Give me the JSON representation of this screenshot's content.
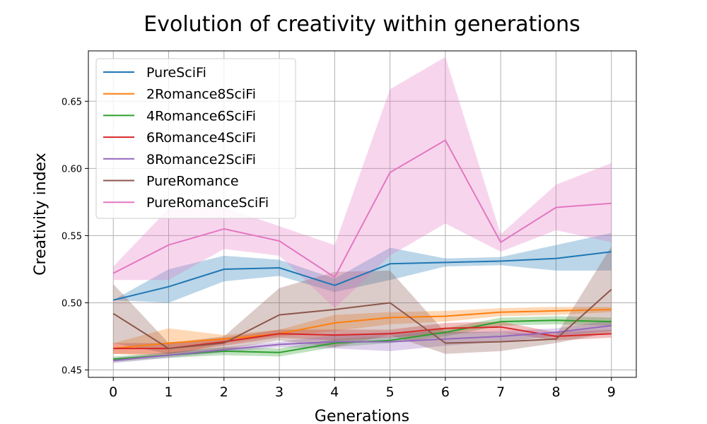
{
  "chart_data": {
    "type": "line",
    "title": "Evolution of creativity within generations",
    "xlabel": "Generations",
    "ylabel": "Creativity index",
    "x": [
      0,
      1,
      2,
      3,
      4,
      5,
      6,
      7,
      8,
      9
    ],
    "xticks": [
      "0",
      "1",
      "2",
      "3",
      "4",
      "5",
      "6",
      "7",
      "8",
      "9"
    ],
    "yticks": [
      "0.45",
      "0.50",
      "0.55",
      "0.60",
      "0.65"
    ],
    "xlim": [
      -0.45,
      9.45
    ],
    "ylim": [
      0.4445,
      0.6875
    ],
    "grid": true,
    "legend": "upper-left",
    "series": [
      {
        "name": "PureSciFi",
        "color": "#1f77b4",
        "values": [
          0.502,
          0.512,
          0.525,
          0.526,
          0.513,
          0.529,
          0.53,
          0.531,
          0.533,
          0.538
        ],
        "lower": [
          0.502,
          0.5,
          0.516,
          0.52,
          0.508,
          0.517,
          0.527,
          0.528,
          0.524,
          0.524
        ],
        "upper": [
          0.502,
          0.525,
          0.535,
          0.532,
          0.518,
          0.541,
          0.533,
          0.534,
          0.543,
          0.552
        ]
      },
      {
        "name": "2Romance8SciFi",
        "color": "#ff7f0e",
        "values": [
          0.466,
          0.47,
          0.473,
          0.477,
          0.485,
          0.489,
          0.49,
          0.493,
          0.494,
          0.495
        ],
        "lower": [
          0.462,
          0.46,
          0.47,
          0.475,
          0.479,
          0.484,
          0.486,
          0.49,
          0.491,
          0.493
        ],
        "upper": [
          0.47,
          0.481,
          0.476,
          0.48,
          0.491,
          0.493,
          0.494,
          0.496,
          0.497,
          0.497
        ]
      },
      {
        "name": "4Romance6SciFi",
        "color": "#2ca02c",
        "values": [
          0.458,
          0.461,
          0.464,
          0.463,
          0.47,
          0.472,
          0.478,
          0.486,
          0.487,
          0.486
        ],
        "lower": [
          0.456,
          0.459,
          0.461,
          0.46,
          0.467,
          0.47,
          0.475,
          0.483,
          0.484,
          0.483
        ],
        "upper": [
          0.46,
          0.463,
          0.467,
          0.466,
          0.473,
          0.475,
          0.481,
          0.489,
          0.49,
          0.489
        ]
      },
      {
        "name": "6Romance4SciFi",
        "color": "#d62728",
        "values": [
          0.466,
          0.466,
          0.471,
          0.477,
          0.476,
          0.477,
          0.481,
          0.482,
          0.475,
          0.477
        ],
        "lower": [
          0.462,
          0.462,
          0.468,
          0.474,
          0.472,
          0.474,
          0.477,
          0.478,
          0.472,
          0.474
        ],
        "upper": [
          0.47,
          0.47,
          0.474,
          0.48,
          0.48,
          0.48,
          0.485,
          0.486,
          0.478,
          0.48
        ]
      },
      {
        "name": "8Romance2SciFi",
        "color": "#9467bd",
        "values": [
          0.457,
          0.461,
          0.465,
          0.469,
          0.471,
          0.471,
          0.473,
          0.475,
          0.478,
          0.483
        ],
        "lower": [
          0.455,
          0.459,
          0.463,
          0.467,
          0.466,
          0.464,
          0.468,
          0.471,
          0.475,
          0.479
        ],
        "upper": [
          0.459,
          0.463,
          0.467,
          0.471,
          0.476,
          0.478,
          0.478,
          0.479,
          0.481,
          0.487
        ]
      },
      {
        "name": "PureRomance",
        "color": "#8c564b",
        "values": [
          0.492,
          0.466,
          0.47,
          0.491,
          0.495,
          0.5,
          0.47,
          0.471,
          0.473,
          0.51
        ],
        "lower": [
          0.47,
          0.462,
          0.465,
          0.472,
          0.467,
          0.476,
          0.462,
          0.464,
          0.47,
          0.478
        ],
        "upper": [
          0.514,
          0.47,
          0.475,
          0.511,
          0.523,
          0.524,
          0.478,
          0.478,
          0.476,
          0.542
        ]
      },
      {
        "name": "PureRomanceSciFi",
        "color": "#e377c2",
        "values": [
          0.522,
          0.543,
          0.555,
          0.546,
          0.519,
          0.597,
          0.621,
          0.545,
          0.571,
          0.574
        ],
        "lower": [
          0.517,
          0.517,
          0.54,
          0.535,
          0.496,
          0.535,
          0.559,
          0.538,
          0.554,
          0.545
        ],
        "upper": [
          0.527,
          0.57,
          0.571,
          0.557,
          0.543,
          0.659,
          0.683,
          0.551,
          0.588,
          0.604
        ]
      }
    ]
  }
}
